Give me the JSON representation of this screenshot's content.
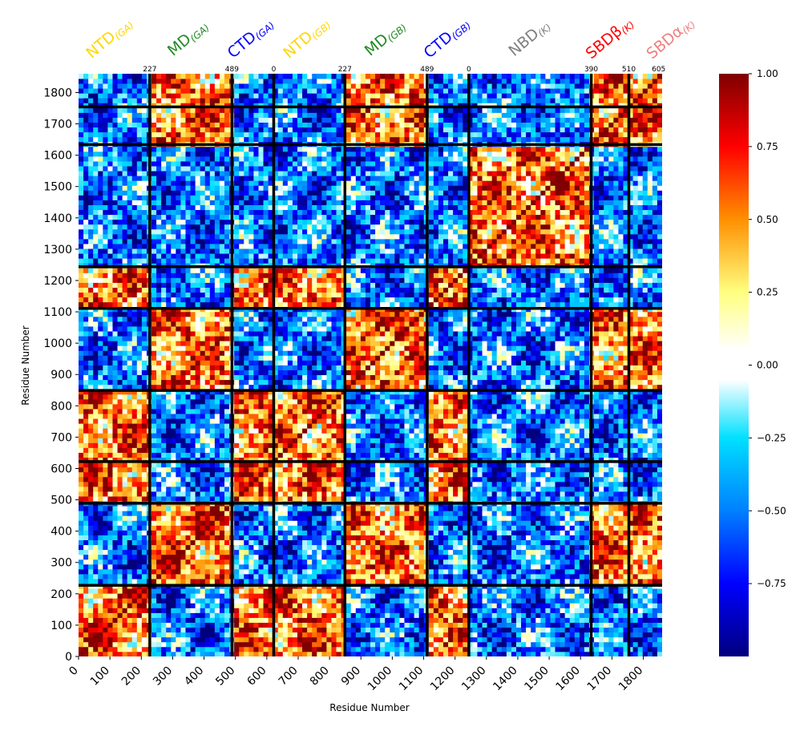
{
  "chart_data": {
    "type": "heatmap",
    "title": "",
    "xlabel": "Residue Number",
    "ylabel": "Residue Number",
    "n_residues": 1860,
    "xlim": [
      0,
      1860
    ],
    "ylim": [
      0,
      1860
    ],
    "x_ticks": [
      0,
      100,
      200,
      300,
      400,
      500,
      600,
      700,
      800,
      900,
      1000,
      1100,
      1200,
      1300,
      1400,
      1500,
      1600,
      1700,
      1800
    ],
    "y_ticks": [
      0,
      100,
      200,
      300,
      400,
      500,
      600,
      700,
      800,
      900,
      1000,
      1100,
      1200,
      1300,
      1400,
      1500,
      1600,
      1700,
      1800
    ],
    "colormap": "jet",
    "colorbar": {
      "range": [
        -1,
        1
      ],
      "ticks": [
        "1.00",
        "0.75",
        "0.50",
        "0.25",
        "0.00",
        "−0.25",
        "−0.50",
        "−0.75"
      ],
      "tick_values": [
        1.0,
        0.75,
        0.5,
        0.25,
        0.0,
        -0.25,
        -0.5,
        -0.75
      ],
      "white_band": [
        -0.05,
        0.05
      ]
    },
    "domain_boundaries": [
      227,
      489,
      622,
      849,
      1111,
      1244,
      1634,
      1754
    ],
    "horizontal_lines": [
      227,
      489,
      622,
      849,
      1111,
      1244,
      1634,
      1754
    ],
    "boundary_labels": [
      {
        "text": "227",
        "at": 227
      },
      {
        "text": "489",
        "at": 489
      },
      {
        "text": "0",
        "at": 622
      },
      {
        "text": "227",
        "at": 849
      },
      {
        "text": "489",
        "at": 1111
      },
      {
        "text": "0",
        "at": 1244
      },
      {
        "text": "390",
        "at": 1634
      },
      {
        "text": "510",
        "at": 1754
      },
      {
        "text": "605",
        "at": 1849
      }
    ],
    "domains": [
      {
        "main": "NTD",
        "sub": "(GA)",
        "color": "#FFD700",
        "start": 0,
        "end": 227
      },
      {
        "main": "MD",
        "sub": "(GA)",
        "color": "#228B22",
        "start": 227,
        "end": 489
      },
      {
        "main": "CTD",
        "sub": "(GA)",
        "color": "#0000FF",
        "start": 489,
        "end": 622
      },
      {
        "main": "NTD",
        "sub": "(GB)",
        "color": "#FFD700",
        "start": 622,
        "end": 849
      },
      {
        "main": "MD",
        "sub": "(GB)",
        "color": "#228B22",
        "start": 849,
        "end": 1111
      },
      {
        "main": "CTD",
        "sub": "(GB)",
        "color": "#0000FF",
        "start": 1111,
        "end": 1244
      },
      {
        "main": "NBD",
        "sub": "(K)",
        "color": "#808080",
        "start": 1244,
        "end": 1634
      },
      {
        "main": "SBDβ",
        "sub": "(K)",
        "color": "#FF0000",
        "start": 1634,
        "end": 1754
      },
      {
        "main": "SBDα",
        "sub": "(K)",
        "color": "#F08080",
        "start": 1754,
        "end": 1849
      }
    ]
  }
}
